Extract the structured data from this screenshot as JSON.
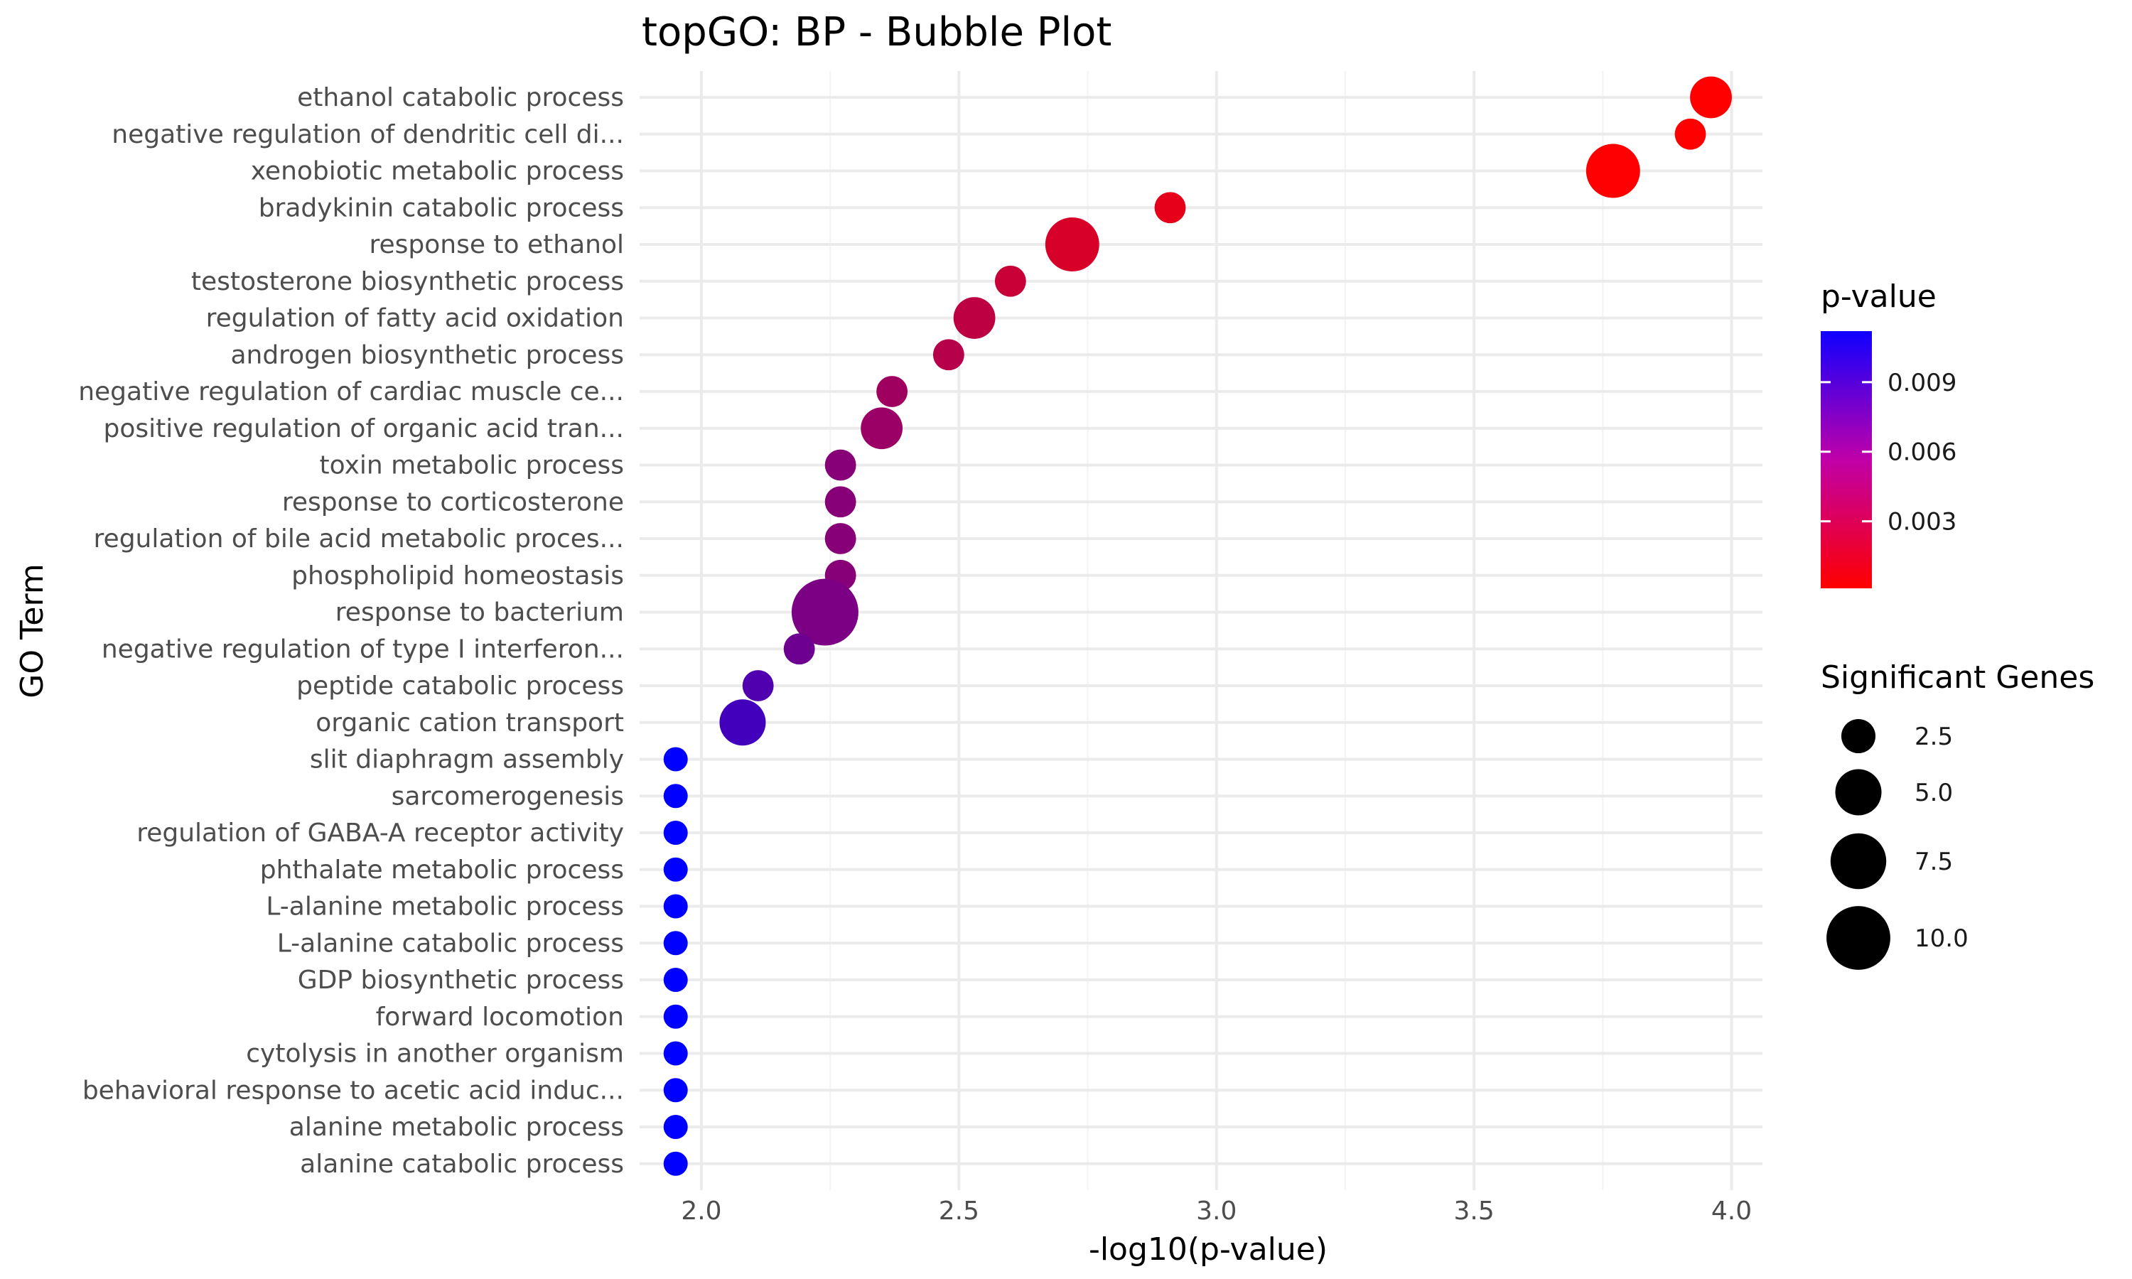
{
  "chart_data": {
    "type": "scatter",
    "title": "topGO: BP - Bubble Plot",
    "xlabel": "-log10(p-value)",
    "ylabel": "GO Term",
    "xlim": [
      1.88,
      4.06
    ],
    "x_ticks": [
      "2.0",
      "2.5",
      "3.0",
      "3.5",
      "4.0"
    ],
    "x_tick_values": [
      2.0,
      2.5,
      3.0,
      3.5,
      4.0
    ],
    "grid": true,
    "points": [
      {
        "term": "ethanol catabolic process",
        "x": 3.96,
        "genes": 4,
        "p_value": 0.00011
      },
      {
        "term": "negative regulation of dendritic cell di...",
        "x": 3.92,
        "genes": 2,
        "p_value": 0.00012
      },
      {
        "term": "xenobiotic metabolic process",
        "x": 3.77,
        "genes": 7,
        "p_value": 0.00017
      },
      {
        "term": "bradykinin catabolic process",
        "x": 2.91,
        "genes": 2,
        "p_value": 0.0012
      },
      {
        "term": "response to ethanol",
        "x": 2.72,
        "genes": 7,
        "p_value": 0.0019
      },
      {
        "term": "testosterone biosynthetic process",
        "x": 2.6,
        "genes": 2,
        "p_value": 0.0025
      },
      {
        "term": "regulation of fatty acid oxidation",
        "x": 2.53,
        "genes": 4,
        "p_value": 0.003
      },
      {
        "term": "androgen biosynthetic process",
        "x": 2.48,
        "genes": 2,
        "p_value": 0.0033
      },
      {
        "term": "negative regulation of cardiac muscle ce...",
        "x": 2.37,
        "genes": 2,
        "p_value": 0.0043
      },
      {
        "term": "positive regulation of organic acid tran...",
        "x": 2.35,
        "genes": 4,
        "p_value": 0.0045
      },
      {
        "term": "toxin metabolic process",
        "x": 2.27,
        "genes": 2,
        "p_value": 0.0053
      },
      {
        "term": "response to corticosterone",
        "x": 2.27,
        "genes": 2,
        "p_value": 0.0053
      },
      {
        "term": "regulation of bile acid metabolic proces...",
        "x": 2.27,
        "genes": 2,
        "p_value": 0.0053
      },
      {
        "term": "phospholipid homeostasis",
        "x": 2.27,
        "genes": 2,
        "p_value": 0.0053
      },
      {
        "term": "response to bacterium",
        "x": 2.24,
        "genes": 11,
        "p_value": 0.0058
      },
      {
        "term": "negative regulation of type I interferon...",
        "x": 2.19,
        "genes": 2,
        "p_value": 0.0064
      },
      {
        "term": "peptide catabolic process",
        "x": 2.11,
        "genes": 2,
        "p_value": 0.0077
      },
      {
        "term": "organic cation transport",
        "x": 2.08,
        "genes": 5,
        "p_value": 0.0083
      },
      {
        "term": "slit diaphragm assembly",
        "x": 1.95,
        "genes": 1,
        "p_value": 0.0112
      },
      {
        "term": "sarcomerogenesis",
        "x": 1.95,
        "genes": 1,
        "p_value": 0.0112
      },
      {
        "term": "regulation of GABA-A receptor activity",
        "x": 1.95,
        "genes": 1,
        "p_value": 0.0112
      },
      {
        "term": "phthalate metabolic process",
        "x": 1.95,
        "genes": 1,
        "p_value": 0.0112
      },
      {
        "term": "L-alanine metabolic process",
        "x": 1.95,
        "genes": 1,
        "p_value": 0.0112
      },
      {
        "term": "L-alanine catabolic process",
        "x": 1.95,
        "genes": 1,
        "p_value": 0.0112
      },
      {
        "term": "GDP biosynthetic process",
        "x": 1.95,
        "genes": 1,
        "p_value": 0.0112
      },
      {
        "term": "forward locomotion",
        "x": 1.95,
        "genes": 1,
        "p_value": 0.0112
      },
      {
        "term": "cytolysis in another organism",
        "x": 1.95,
        "genes": 1,
        "p_value": 0.0112
      },
      {
        "term": "behavioral response to acetic acid induc...",
        "x": 1.95,
        "genes": 1,
        "p_value": 0.0112
      },
      {
        "term": "alanine metabolic process",
        "x": 1.95,
        "genes": 1,
        "p_value": 0.0112
      },
      {
        "term": "alanine catabolic process",
        "x": 1.95,
        "genes": 1,
        "p_value": 0.0112
      }
    ],
    "color_legend": {
      "title": "p-value",
      "low_color": "#ff0000",
      "high_color": "#0000ff",
      "range": [
        0.00011,
        0.0112
      ],
      "breaks": [
        0.009,
        0.006,
        0.003
      ],
      "labels": [
        "0.009",
        "0.006",
        "0.003"
      ]
    },
    "size_legend": {
      "title": "Significant Genes",
      "range": [
        1,
        11
      ],
      "breaks": [
        2.5,
        5.0,
        7.5,
        10.0
      ],
      "labels": [
        "2.5",
        "5.0",
        "7.5",
        "10.0"
      ]
    },
    "legend_position": "right"
  }
}
